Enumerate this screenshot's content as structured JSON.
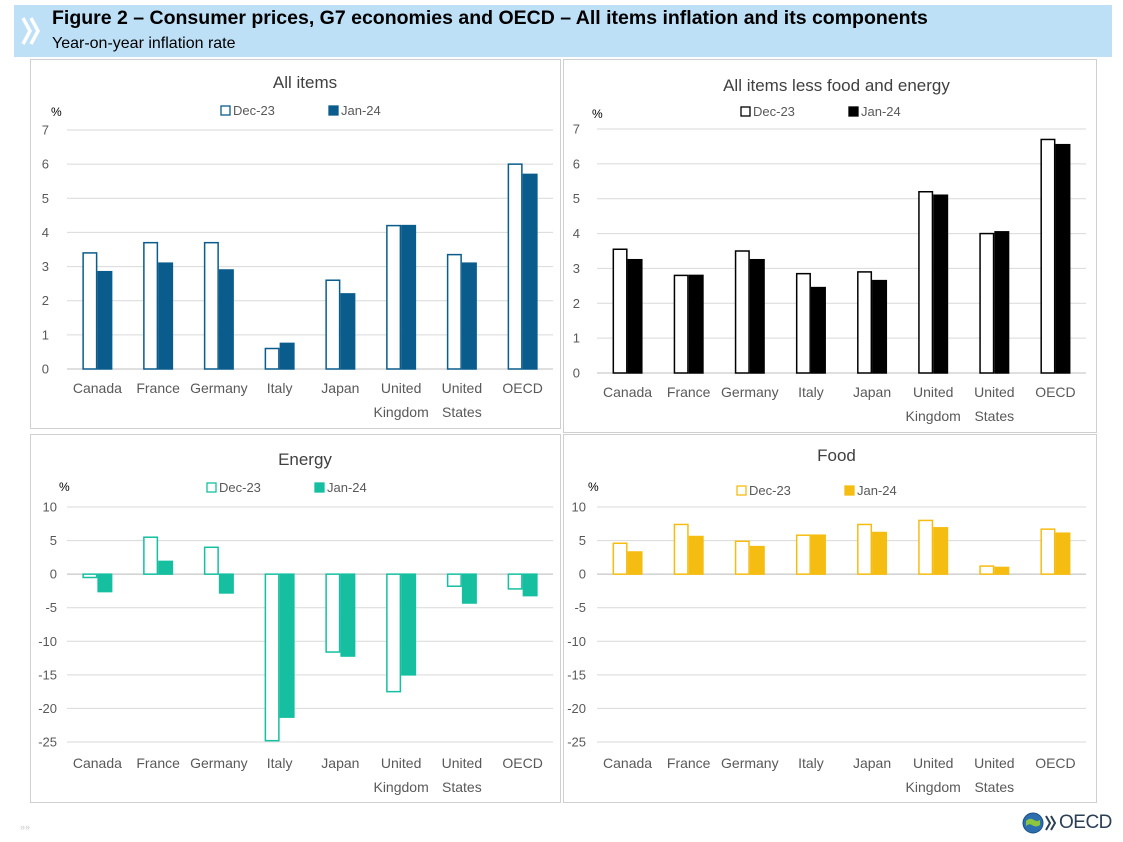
{
  "header": {
    "title": "Figure 2 – Consumer prices, G7 economies and OECD – All items inflation and its components",
    "subtitle": "Year-on-year inflation rate"
  },
  "logo": {
    "text": "OECD"
  },
  "footer": {
    "mark": "»»"
  },
  "colors": {
    "header_bg": "#bde0f6",
    "all_items": "#0a5c8c",
    "core": "#000000",
    "energy": "#15bfa0",
    "food": "#f5bd12"
  },
  "chart_data": [
    {
      "id": "all-items",
      "type": "bar",
      "title": "All items",
      "ylabel": "%",
      "ylim": [
        0,
        7
      ],
      "yticks": [
        "7",
        "6",
        "5",
        "4",
        "3",
        "2",
        "1",
        "0"
      ],
      "categories": [
        [
          "Canada"
        ],
        [
          "France"
        ],
        [
          "Germany"
        ],
        [
          "Italy"
        ],
        [
          "Japan"
        ],
        [
          "United",
          "Kingdom"
        ],
        [
          "United",
          "States"
        ],
        [
          "OECD"
        ]
      ],
      "legend": [
        "Dec-23",
        "Jan-24"
      ],
      "color": "#0a5c8c",
      "series": [
        {
          "name": "Dec-23",
          "values": [
            3.4,
            3.7,
            3.7,
            0.6,
            2.6,
            4.2,
            3.35,
            6.0
          ]
        },
        {
          "name": "Jan-24",
          "values": [
            2.85,
            3.1,
            2.9,
            0.75,
            2.2,
            4.2,
            3.1,
            5.7
          ]
        }
      ]
    },
    {
      "id": "core",
      "type": "bar",
      "title": "All items less food and energy",
      "ylabel": "%",
      "ylim": [
        0,
        7
      ],
      "yticks": [
        "7",
        "6",
        "5",
        "4",
        "3",
        "2",
        "1",
        "0"
      ],
      "categories": [
        [
          "Canada"
        ],
        [
          "France"
        ],
        [
          "Germany"
        ],
        [
          "Italy"
        ],
        [
          "Japan"
        ],
        [
          "United",
          "Kingdom"
        ],
        [
          "United",
          "States"
        ],
        [
          "OECD"
        ]
      ],
      "legend": [
        "Dec-23",
        "Jan-24"
      ],
      "color": "#000000",
      "series": [
        {
          "name": "Dec-23",
          "values": [
            3.55,
            2.8,
            3.5,
            2.85,
            2.9,
            5.2,
            4.0,
            6.7
          ]
        },
        {
          "name": "Jan-24",
          "values": [
            3.25,
            2.8,
            3.25,
            2.45,
            2.65,
            5.1,
            4.05,
            6.55
          ]
        }
      ]
    },
    {
      "id": "energy",
      "type": "bar",
      "title": "Energy",
      "ylabel": "%",
      "ylim": [
        -25,
        10
      ],
      "yticks": [
        "10",
        "5",
        "0",
        "-5",
        "-10",
        "-15",
        "-20",
        "-25"
      ],
      "categories": [
        [
          "Canada"
        ],
        [
          "France"
        ],
        [
          "Germany"
        ],
        [
          "Italy"
        ],
        [
          "Japan"
        ],
        [
          "United",
          "Kingdom"
        ],
        [
          "United",
          "States"
        ],
        [
          "OECD"
        ]
      ],
      "legend": [
        "Dec-23",
        "Jan-24"
      ],
      "color": "#15bfa0",
      "series": [
        {
          "name": "Dec-23",
          "values": [
            -0.5,
            5.5,
            4.0,
            -24.8,
            -11.6,
            -17.5,
            -1.8,
            -2.2
          ]
        },
        {
          "name": "Jan-24",
          "values": [
            -2.6,
            1.9,
            -2.8,
            -21.3,
            -12.2,
            -15.0,
            -4.3,
            -3.2
          ]
        }
      ]
    },
    {
      "id": "food",
      "type": "bar",
      "title": "Food",
      "ylabel": "%",
      "ylim": [
        -25,
        10
      ],
      "yticks": [
        "10",
        "5",
        "0",
        "-5",
        "-10",
        "-15",
        "-20",
        "-25"
      ],
      "categories": [
        [
          "Canada"
        ],
        [
          "France"
        ],
        [
          "Germany"
        ],
        [
          "Italy"
        ],
        [
          "Japan"
        ],
        [
          "United",
          "Kingdom"
        ],
        [
          "United",
          "States"
        ],
        [
          "OECD"
        ]
      ],
      "legend": [
        "Dec-23",
        "Jan-24"
      ],
      "color": "#f5bd12",
      "series": [
        {
          "name": "Dec-23",
          "values": [
            4.6,
            7.4,
            4.9,
            5.8,
            7.4,
            8.0,
            1.2,
            6.7
          ]
        },
        {
          "name": "Jan-24",
          "values": [
            3.3,
            5.6,
            4.1,
            5.8,
            6.2,
            6.9,
            1.0,
            6.1
          ]
        }
      ]
    }
  ]
}
